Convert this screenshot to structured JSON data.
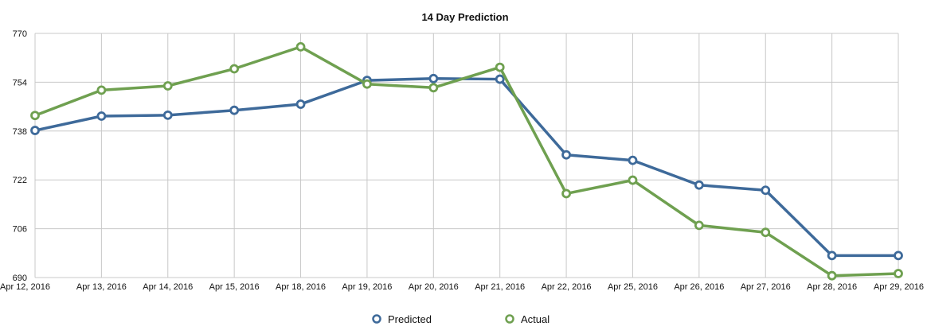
{
  "chart_data": {
    "type": "line",
    "title": "14 Day Prediction",
    "xlabel": "",
    "ylabel": "",
    "categories": [
      "Apr 12, 2016",
      "Apr 13, 2016",
      "Apr 14, 2016",
      "Apr 15, 2016",
      "Apr 18, 2016",
      "Apr 19, 2016",
      "Apr 20, 2016",
      "Apr 21, 2016",
      "Apr 22, 2016",
      "Apr 25, 2016",
      "Apr 26, 2016",
      "Apr 27, 2016",
      "Apr 28, 2016",
      "Apr 29, 2016"
    ],
    "ylim": [
      690,
      770
    ],
    "yticks": [
      "690",
      "706",
      "722",
      "738",
      "754",
      "770"
    ],
    "grid": true,
    "legend_position": "bottom",
    "series": [
      {
        "name": "Predicted",
        "color": "#3e6a9a",
        "values": [
          738.2,
          742.9,
          743.2,
          744.8,
          746.8,
          754.6,
          755.2,
          755.0,
          730.2,
          728.4,
          720.3,
          718.6,
          697.2,
          697.2
        ]
      },
      {
        "name": "Actual",
        "color": "#6fa050",
        "values": [
          743.1,
          751.4,
          752.8,
          758.4,
          765.6,
          753.4,
          752.2,
          758.9,
          717.5,
          721.9,
          707.1,
          704.8,
          690.6,
          691.3
        ]
      }
    ]
  }
}
